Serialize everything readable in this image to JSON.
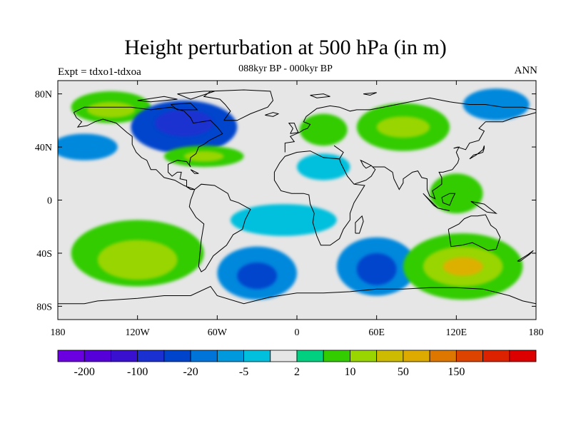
{
  "title": "Height perturbation at 500 hPa (in m)",
  "subtitle": "088kyr BP - 000kyr BP",
  "left_label": "Expt = tdxo1-tdxoa",
  "right_label": "ANN",
  "map": {
    "lon_range": [
      -180,
      180
    ],
    "lat_range": [
      -90,
      90
    ],
    "x_ticks": [
      {
        "value": -180,
        "label": "180"
      },
      {
        "value": -120,
        "label": "120W"
      },
      {
        "value": -60,
        "label": "60W"
      },
      {
        "value": 0,
        "label": "0"
      },
      {
        "value": 60,
        "label": "60E"
      },
      {
        "value": 120,
        "label": "120E"
      },
      {
        "value": 180,
        "label": "180"
      }
    ],
    "y_ticks": [
      {
        "value": 80,
        "label": "80N"
      },
      {
        "value": 40,
        "label": "40N"
      },
      {
        "value": 0,
        "label": "0"
      },
      {
        "value": -40,
        "label": "40S"
      },
      {
        "value": -80,
        "label": "80S"
      }
    ],
    "background_color": "#e6e6e6",
    "anomaly_regions": [
      {
        "lon": -140,
        "lat": 70,
        "rx": 30,
        "ry": 12,
        "color": "#33cc00"
      },
      {
        "lon": -140,
        "lat": 68,
        "rx": 18,
        "ry": 6,
        "color": "#99d500"
      },
      {
        "lon": -85,
        "lat": 55,
        "rx": 40,
        "ry": 20,
        "color": "#0044cc"
      },
      {
        "lon": -85,
        "lat": 58,
        "rx": 22,
        "ry": 10,
        "color": "#1a33d0"
      },
      {
        "lon": -70,
        "lat": 33,
        "rx": 30,
        "ry": 8,
        "color": "#33cc00"
      },
      {
        "lon": -70,
        "lat": 33,
        "rx": 15,
        "ry": 4,
        "color": "#99d500"
      },
      {
        "lon": -160,
        "lat": 40,
        "rx": 25,
        "ry": 10,
        "color": "#0088dd"
      },
      {
        "lon": 20,
        "lat": 53,
        "rx": 18,
        "ry": 12,
        "color": "#33cc00"
      },
      {
        "lon": 80,
        "lat": 55,
        "rx": 35,
        "ry": 18,
        "color": "#33cc00"
      },
      {
        "lon": 80,
        "lat": 55,
        "rx": 20,
        "ry": 8,
        "color": "#99d500"
      },
      {
        "lon": 150,
        "lat": 72,
        "rx": 25,
        "ry": 12,
        "color": "#0088dd"
      },
      {
        "lon": 20,
        "lat": 25,
        "rx": 20,
        "ry": 10,
        "color": "#00c0dd"
      },
      {
        "lon": -120,
        "lat": -40,
        "rx": 50,
        "ry": 25,
        "color": "#33cc00"
      },
      {
        "lon": -120,
        "lat": -45,
        "rx": 30,
        "ry": 15,
        "color": "#99d500"
      },
      {
        "lon": -30,
        "lat": -55,
        "rx": 30,
        "ry": 20,
        "color": "#0088dd"
      },
      {
        "lon": -30,
        "lat": -57,
        "rx": 15,
        "ry": 10,
        "color": "#0044cc"
      },
      {
        "lon": 60,
        "lat": -50,
        "rx": 30,
        "ry": 22,
        "color": "#0088dd"
      },
      {
        "lon": 60,
        "lat": -52,
        "rx": 15,
        "ry": 12,
        "color": "#0044cc"
      },
      {
        "lon": 125,
        "lat": -50,
        "rx": 45,
        "ry": 25,
        "color": "#33cc00"
      },
      {
        "lon": 125,
        "lat": -50,
        "rx": 30,
        "ry": 15,
        "color": "#99d500"
      },
      {
        "lon": 125,
        "lat": -50,
        "rx": 15,
        "ry": 7,
        "color": "#ddb000"
      },
      {
        "lon": 120,
        "lat": 5,
        "rx": 20,
        "ry": 15,
        "color": "#33cc00"
      },
      {
        "lon": -10,
        "lat": -15,
        "rx": 40,
        "ry": 12,
        "color": "#00c0dd"
      }
    ]
  },
  "colorbar": {
    "colors": [
      "#6a00e0",
      "#5500d8",
      "#3a10d0",
      "#1a30d0",
      "#0044cc",
      "#0074d8",
      "#0099dd",
      "#00c0dd",
      "#e6e6e6",
      "#00d080",
      "#33cc00",
      "#99d500",
      "#ccbb00",
      "#ddaa00",
      "#dd7700",
      "#dd4400",
      "#dd2200",
      "#dd0000"
    ],
    "labels": [
      {
        "boundary": 1,
        "text": "-200"
      },
      {
        "boundary": 3,
        "text": "-100"
      },
      {
        "boundary": 5,
        "text": "-20"
      },
      {
        "boundary": 7,
        "text": "-5"
      },
      {
        "boundary": 9,
        "text": "2"
      },
      {
        "boundary": 11,
        "text": "10"
      },
      {
        "boundary": 13,
        "text": "50"
      },
      {
        "boundary": 15,
        "text": "150"
      }
    ]
  }
}
